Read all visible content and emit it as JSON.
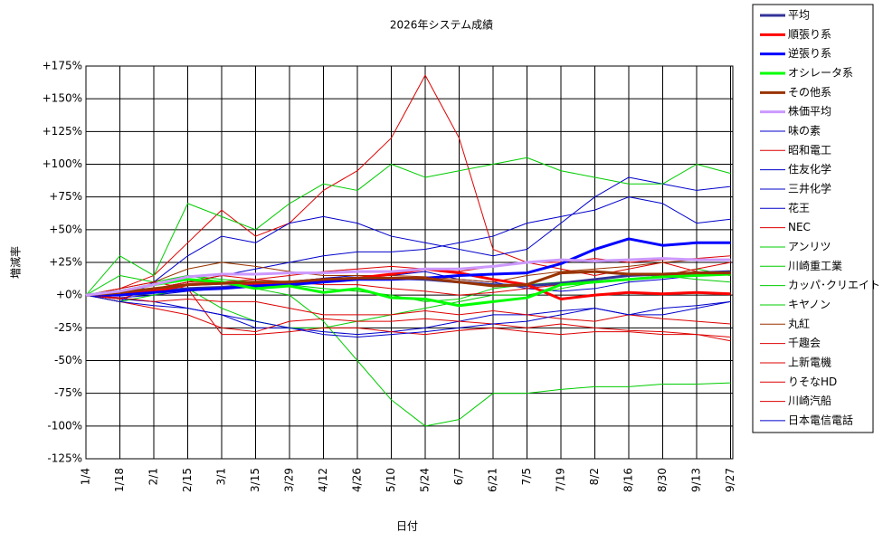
{
  "chart_data": {
    "type": "line",
    "title": "2026年システム成績",
    "x_label": "日付",
    "y_label": "増減率",
    "categories": [
      "1/4",
      "1/18",
      "2/1",
      "2/15",
      "3/1",
      "3/15",
      "3/29",
      "4/12",
      "4/26",
      "5/10",
      "5/24",
      "6/7",
      "6/21",
      "7/5",
      "7/19",
      "8/2",
      "8/16",
      "8/30",
      "9/13",
      "9/27"
    ],
    "ylim": [
      -125,
      175
    ],
    "yticks": [
      {
        "value": -125,
        "label": "-125%"
      },
      {
        "value": -100,
        "label": "-100%"
      },
      {
        "value": -75,
        "label": "-75%"
      },
      {
        "value": -50,
        "label": "-50%"
      },
      {
        "value": -25,
        "label": "-25%"
      },
      {
        "value": 0,
        "label": "+0%"
      },
      {
        "value": 25,
        "label": "+25%"
      },
      {
        "value": 50,
        "label": "+50%"
      },
      {
        "value": 75,
        "label": "+75%"
      },
      {
        "value": 100,
        "label": "+100%"
      },
      {
        "value": 125,
        "label": "+125%"
      },
      {
        "value": 150,
        "label": "+150%"
      },
      {
        "value": 175,
        "label": "+175%"
      }
    ],
    "grid": true,
    "legend": "right",
    "series": [
      {
        "name": "平均",
        "color": "#333399",
        "width": 3,
        "values": [
          0,
          1,
          3,
          5,
          6,
          8,
          10,
          12,
          13,
          13,
          12,
          10,
          8,
          7,
          9,
          12,
          15,
          16,
          17,
          18
        ]
      },
      {
        "name": "順張り系",
        "color": "#ff0000",
        "width": 3,
        "values": [
          0,
          1,
          3,
          8,
          9,
          9,
          10,
          11,
          13,
          16,
          20,
          17,
          12,
          8,
          -3,
          0,
          2,
          1,
          2,
          1
        ]
      },
      {
        "name": "逆張り系",
        "color": "#0000ff",
        "width": 3,
        "values": [
          0,
          0,
          2,
          4,
          5,
          7,
          8,
          10,
          12,
          12,
          13,
          15,
          16,
          17,
          24,
          35,
          43,
          38,
          40,
          40
        ]
      },
      {
        "name": "オシレータ系",
        "color": "#00ff00",
        "width": 3,
        "values": [
          0,
          3,
          8,
          12,
          10,
          5,
          7,
          2,
          5,
          -2,
          -3,
          -8,
          -5,
          -2,
          8,
          10,
          12,
          14,
          15,
          16
        ]
      },
      {
        "name": "その他系",
        "color": "#993300",
        "width": 3,
        "values": [
          0,
          2,
          5,
          8,
          9,
          10,
          10,
          12,
          13,
          13,
          13,
          10,
          7,
          8,
          17,
          18,
          16,
          16,
          17,
          17
        ]
      },
      {
        "name": "株価平均",
        "color": "#cc99ff",
        "width": 3,
        "values": [
          0,
          3,
          8,
          14,
          16,
          16,
          17,
          17,
          18,
          18,
          20,
          20,
          22,
          25,
          27,
          26,
          27,
          28,
          27,
          27
        ]
      },
      {
        "name": "味の素",
        "color": "#0000cc",
        "width": 1,
        "values": [
          0,
          -2,
          0,
          3,
          5,
          8,
          10,
          13,
          15,
          15,
          18,
          12,
          10,
          5,
          3,
          5,
          10,
          12,
          15,
          18
        ]
      },
      {
        "name": "昭和電工",
        "color": "#dd0000",
        "width": 1,
        "values": [
          0,
          5,
          15,
          40,
          65,
          45,
          55,
          80,
          95,
          120,
          168,
          120,
          35,
          25,
          20,
          15,
          20,
          25,
          18,
          15
        ]
      },
      {
        "name": "住友化学",
        "color": "#0000cc",
        "width": 1,
        "values": [
          0,
          -3,
          -5,
          -10,
          -15,
          -25,
          -25,
          -28,
          -30,
          -28,
          -25,
          -20,
          -15,
          -15,
          -12,
          -10,
          -15,
          -15,
          -10,
          -5
        ]
      },
      {
        "name": "三井化学",
        "color": "#0000cc",
        "width": 1,
        "values": [
          0,
          -5,
          10,
          30,
          45,
          40,
          55,
          60,
          55,
          45,
          40,
          35,
          30,
          35,
          55,
          75,
          90,
          85,
          80,
          83
        ]
      },
      {
        "name": "花王",
        "color": "#0000cc",
        "width": 1,
        "values": [
          0,
          0,
          5,
          10,
          15,
          20,
          25,
          30,
          33,
          33,
          35,
          40,
          45,
          55,
          60,
          65,
          75,
          70,
          55,
          58
        ]
      },
      {
        "name": "NEC",
        "color": "#dd0000",
        "width": 1,
        "values": [
          0,
          -3,
          5,
          10,
          10,
          12,
          15,
          18,
          20,
          22,
          20,
          18,
          22,
          25,
          25,
          28,
          25,
          27,
          28,
          30
        ]
      },
      {
        "name": "アンリツ",
        "color": "#00cc00",
        "width": 1,
        "values": [
          0,
          30,
          15,
          70,
          60,
          50,
          70,
          85,
          80,
          100,
          90,
          95,
          100,
          105,
          95,
          90,
          85,
          85,
          100,
          93
        ]
      },
      {
        "name": "川崎重工業",
        "color": "#00cc00",
        "width": 1,
        "values": [
          0,
          15,
          10,
          15,
          10,
          5,
          0,
          -20,
          -50,
          -80,
          -100,
          -95,
          -75,
          -75,
          -72,
          -70,
          -70,
          -68,
          -68,
          -67
        ]
      },
      {
        "name": "カッパ･クリエイト",
        "color": "#00cc00",
        "width": 1,
        "values": [
          0,
          2,
          8,
          15,
          12,
          10,
          8,
          5,
          3,
          0,
          -5,
          -3,
          5,
          8,
          10,
          12,
          15,
          15,
          20,
          15
        ]
      },
      {
        "name": "キヤノン",
        "color": "#00cc00",
        "width": 1,
        "values": [
          0,
          -5,
          0,
          5,
          -10,
          -20,
          -25,
          -25,
          -20,
          -15,
          -10,
          -5,
          0,
          0,
          5,
          10,
          12,
          15,
          12,
          10
        ]
      },
      {
        "name": "丸紅",
        "color": "#993300",
        "width": 1,
        "values": [
          0,
          5,
          10,
          20,
          25,
          22,
          18,
          15,
          15,
          15,
          14,
          12,
          10,
          15,
          18,
          20,
          22,
          25,
          27,
          27
        ]
      },
      {
        "name": "千趣会",
        "color": "#dd0000",
        "width": 1,
        "values": [
          0,
          -5,
          -10,
          -15,
          -25,
          -28,
          -20,
          -18,
          -20,
          -20,
          -18,
          -20,
          -22,
          -25,
          -22,
          -25,
          -27,
          -28,
          -30,
          -35
        ]
      },
      {
        "name": "上新電機",
        "color": "#dd0000",
        "width": 1,
        "values": [
          0,
          -2,
          -5,
          -3,
          -5,
          -5,
          -10,
          -15,
          -15,
          -15,
          -12,
          -15,
          -12,
          -15,
          -18,
          -20,
          -15,
          -18,
          -20,
          -22
        ]
      },
      {
        "name": "りそなHD",
        "color": "#dd0000",
        "width": 1,
        "values": [
          0,
          5,
          10,
          5,
          -30,
          -30,
          -28,
          -25,
          -25,
          -28,
          -30,
          -27,
          -25,
          -28,
          -30,
          -28,
          -28,
          -30,
          -30,
          -32
        ]
      },
      {
        "name": "川崎汽船",
        "color": "#dd0000",
        "width": 1,
        "values": [
          0,
          3,
          5,
          10,
          15,
          12,
          10,
          8,
          8,
          5,
          3,
          0,
          2,
          5,
          8,
          10,
          12,
          15,
          20,
          25
        ]
      },
      {
        "name": "日本電信電話",
        "color": "#0000cc",
        "width": 1,
        "values": [
          0,
          -5,
          -8,
          -10,
          -15,
          -20,
          -25,
          -30,
          -32,
          -30,
          -28,
          -25,
          -22,
          -20,
          -15,
          -10,
          -15,
          -10,
          -8,
          -5
        ]
      }
    ]
  }
}
